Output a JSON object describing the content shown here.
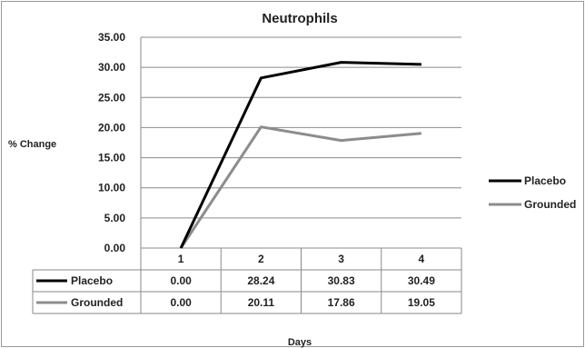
{
  "chart_data": {
    "type": "line",
    "title": "Neutrophils",
    "xlabel": "Days",
    "ylabel": "% Change",
    "categories": [
      "1",
      "2",
      "3",
      "4"
    ],
    "ylim": [
      0,
      35
    ],
    "yticks": [
      "0.00",
      "5.00",
      "10.00",
      "15.00",
      "20.00",
      "25.00",
      "30.00",
      "35.00"
    ],
    "grid": true,
    "legend_position": "right",
    "series": [
      {
        "name": "Placebo",
        "values": [
          0.0,
          28.24,
          30.83,
          30.49
        ],
        "labels": [
          "0.00",
          "28.24",
          "30.83",
          "30.49"
        ],
        "color": "#000000"
      },
      {
        "name": "Grounded",
        "values": [
          0.0,
          20.11,
          17.86,
          19.05
        ],
        "labels": [
          "0.00",
          "20.11",
          "17.86",
          "19.05"
        ],
        "color": "#8c8c8c"
      }
    ]
  }
}
